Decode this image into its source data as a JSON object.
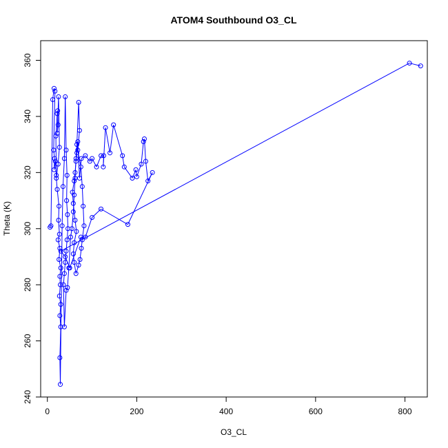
{
  "chart_data": {
    "type": "line",
    "title": "ATOM4 Southbound O3_CL",
    "xlabel": "O3_CL",
    "ylabel": "Theta (K)",
    "xlim": [
      -15,
      850
    ],
    "ylim": [
      240,
      367
    ],
    "xticks": [
      0,
      200,
      400,
      600,
      800
    ],
    "yticks": [
      240,
      260,
      280,
      300,
      320,
      340,
      360
    ],
    "grid": false,
    "legend": "none",
    "markers": "open-circle",
    "color": "#0000ff",
    "series": [
      {
        "points": [
          [
            6,
            300.5
          ],
          [
            8,
            301
          ],
          [
            12,
            346
          ],
          [
            15,
            350
          ],
          [
            17,
            349
          ],
          [
            14,
            328
          ],
          [
            16,
            325
          ],
          [
            15,
            321
          ],
          [
            18,
            324
          ],
          [
            20,
            319
          ],
          [
            19,
            333
          ],
          [
            22,
            341
          ],
          [
            23,
            342
          ],
          [
            24,
            337
          ],
          [
            22,
            334
          ],
          [
            25,
            347
          ],
          [
            27,
            329
          ],
          [
            24,
            323
          ],
          [
            20,
            318
          ],
          [
            22,
            314
          ],
          [
            26,
            308
          ],
          [
            25,
            303
          ],
          [
            27,
            298
          ],
          [
            24,
            296
          ],
          [
            28,
            293
          ],
          [
            26,
            289
          ],
          [
            30,
            286
          ],
          [
            28,
            283
          ],
          [
            29,
            280
          ],
          [
            27,
            276
          ],
          [
            30,
            273
          ],
          [
            28,
            269
          ],
          [
            30,
            265
          ],
          [
            28,
            254
          ],
          [
            29,
            244.5
          ],
          [
            33,
            301
          ],
          [
            35,
            315
          ],
          [
            38,
            325
          ],
          [
            40,
            347
          ],
          [
            42,
            328
          ],
          [
            44,
            319
          ],
          [
            43,
            310
          ],
          [
            45,
            305
          ],
          [
            46,
            300
          ],
          [
            44,
            296
          ],
          [
            42,
            292
          ],
          [
            40,
            288
          ],
          [
            38,
            284
          ],
          [
            36,
            280
          ],
          [
            38,
            265
          ],
          [
            42,
            278
          ],
          [
            45,
            279
          ],
          [
            48,
            286
          ],
          [
            52,
            297
          ],
          [
            55,
            300
          ],
          [
            58,
            306
          ],
          [
            60,
            312
          ],
          [
            62,
            318
          ],
          [
            64,
            325
          ],
          [
            66,
            330
          ],
          [
            70,
            345
          ],
          [
            72,
            335
          ],
          [
            68,
            328
          ],
          [
            75,
            322
          ],
          [
            78,
            315
          ],
          [
            80,
            308
          ],
          [
            82,
            301
          ],
          [
            78,
            296
          ],
          [
            76,
            293
          ],
          [
            73,
            289
          ],
          [
            70,
            287
          ],
          [
            64,
            284
          ],
          [
            60,
            288
          ],
          [
            58,
            291
          ],
          [
            60,
            295
          ],
          [
            65,
            299
          ],
          [
            62,
            303
          ],
          [
            58,
            309
          ],
          [
            56,
            313
          ],
          [
            60,
            317
          ],
          [
            62,
            320
          ],
          [
            64,
            324
          ],
          [
            66,
            327
          ],
          [
            68,
            331
          ],
          [
            72,
            318
          ],
          [
            76,
            325
          ],
          [
            85,
            326
          ],
          [
            95,
            324
          ],
          [
            100,
            325
          ],
          [
            110,
            322
          ],
          [
            120,
            326
          ],
          [
            126,
            326
          ],
          [
            125,
            322
          ],
          [
            130,
            336
          ],
          [
            140,
            327
          ],
          [
            148,
            337
          ],
          [
            168,
            326
          ],
          [
            172,
            322
          ],
          [
            190,
            318
          ],
          [
            198,
            321
          ],
          [
            200,
            318.5
          ],
          [
            210,
            323
          ],
          [
            215,
            331
          ],
          [
            217,
            332
          ],
          [
            220,
            324
          ],
          [
            225,
            317
          ],
          [
            235,
            320
          ],
          [
            180,
            301.5
          ],
          [
            120,
            307
          ],
          [
            100,
            304
          ],
          [
            85,
            297
          ],
          [
            75,
            297
          ],
          [
            50,
            286
          ],
          [
            40,
            290
          ],
          [
            30,
            292
          ],
          [
            810,
            359
          ],
          [
            835,
            358
          ]
        ]
      }
    ]
  }
}
